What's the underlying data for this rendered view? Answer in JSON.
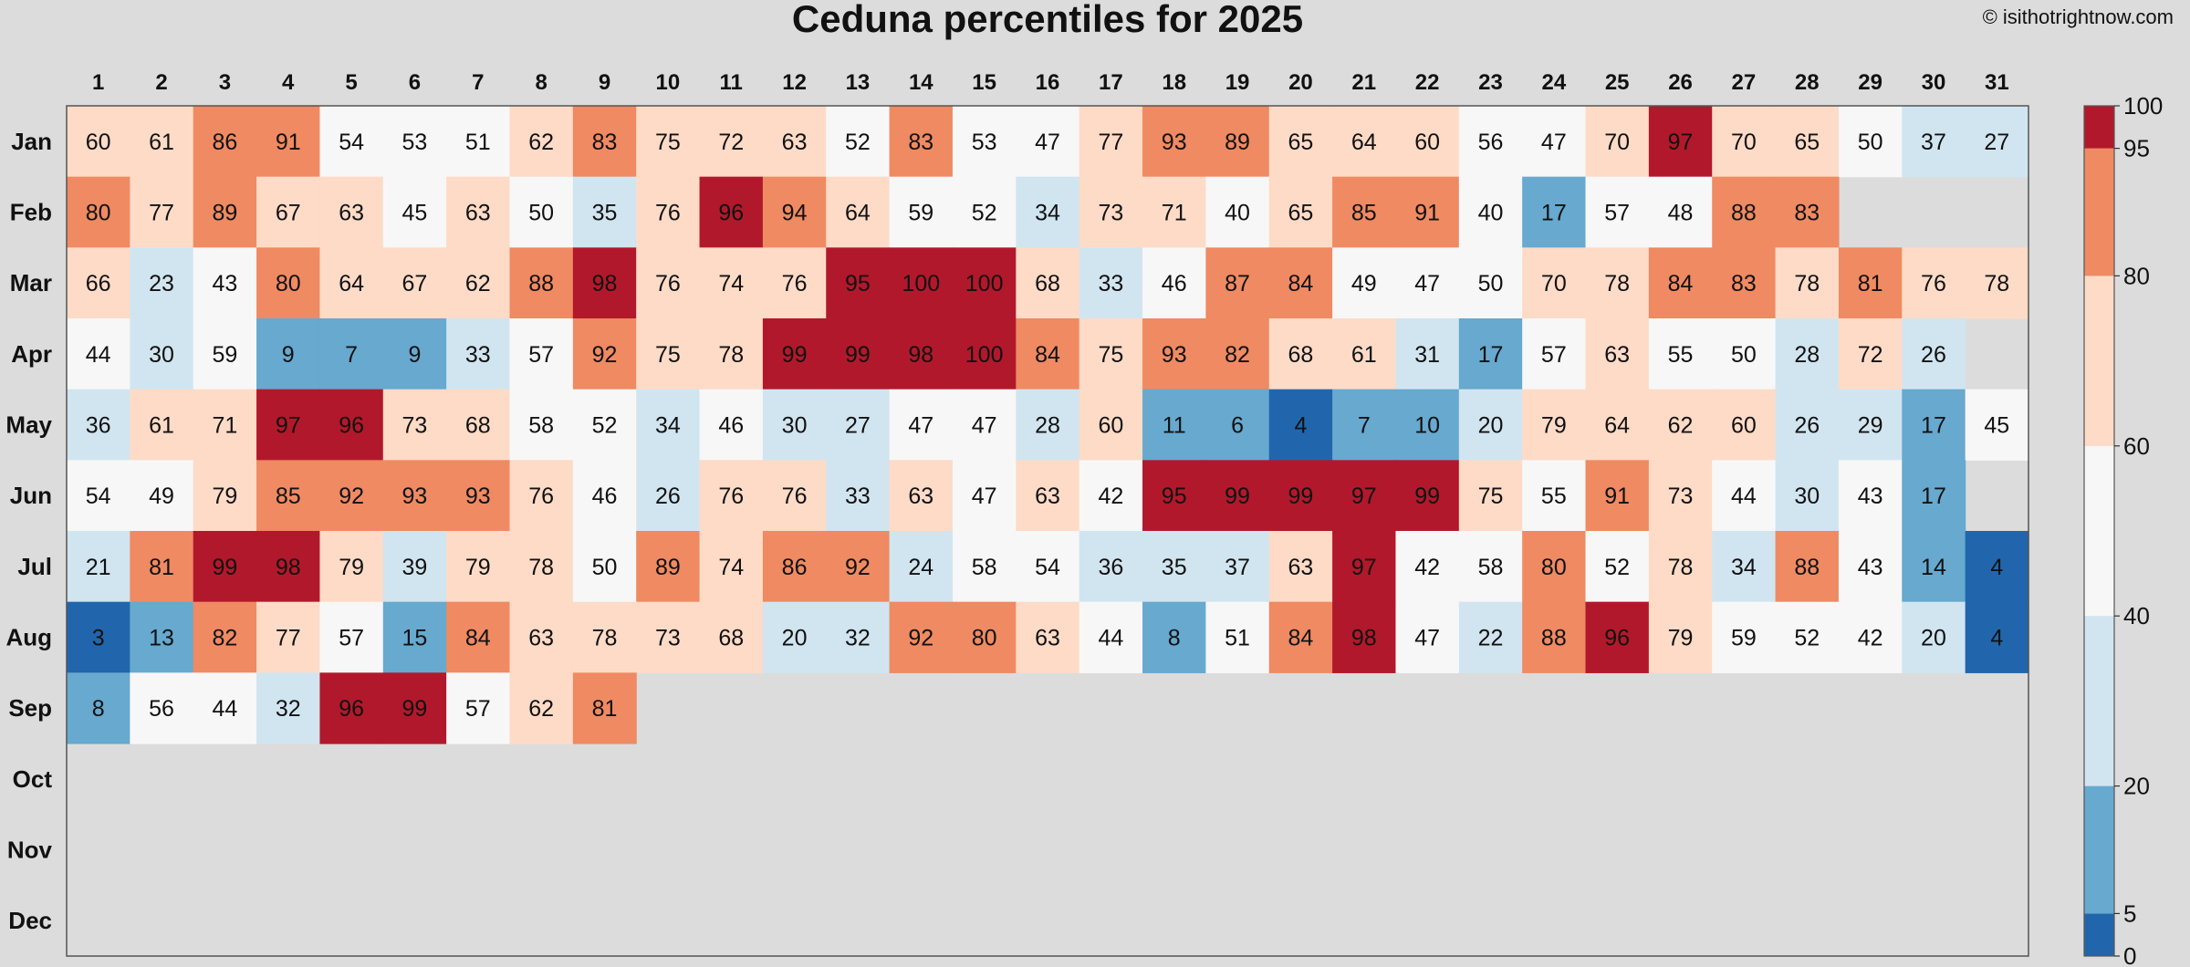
{
  "chart_data": {
    "type": "heatmap",
    "title": "Ceduna percentiles for 2025",
    "credit": "© isithotrightnow.com",
    "x_labels": [
      "1",
      "2",
      "3",
      "4",
      "5",
      "6",
      "7",
      "8",
      "9",
      "10",
      "11",
      "12",
      "13",
      "14",
      "15",
      "16",
      "17",
      "18",
      "19",
      "20",
      "21",
      "22",
      "23",
      "24",
      "25",
      "26",
      "27",
      "28",
      "29",
      "30",
      "31"
    ],
    "y_labels": [
      "Jan",
      "Feb",
      "Mar",
      "Apr",
      "May",
      "Jun",
      "Jul",
      "Aug",
      "Sep",
      "Oct",
      "Nov",
      "Dec"
    ],
    "values": [
      [
        60,
        61,
        86,
        91,
        54,
        53,
        51,
        62,
        83,
        75,
        72,
        63,
        52,
        83,
        53,
        47,
        77,
        93,
        89,
        65,
        64,
        60,
        56,
        47,
        70,
        97,
        70,
        65,
        50,
        37,
        27
      ],
      [
        80,
        77,
        89,
        67,
        63,
        45,
        63,
        50,
        35,
        76,
        96,
        94,
        64,
        59,
        52,
        34,
        73,
        71,
        40,
        65,
        85,
        91,
        40,
        17,
        57,
        48,
        88,
        83,
        null,
        null,
        null
      ],
      [
        66,
        23,
        43,
        80,
        64,
        67,
        62,
        88,
        98,
        76,
        74,
        76,
        95,
        100,
        100,
        68,
        33,
        46,
        87,
        84,
        49,
        47,
        50,
        70,
        78,
        84,
        83,
        78,
        81,
        76,
        78
      ],
      [
        44,
        30,
        59,
        9,
        7,
        9,
        33,
        57,
        92,
        75,
        78,
        99,
        99,
        98,
        100,
        84,
        75,
        93,
        82,
        68,
        61,
        31,
        17,
        57,
        63,
        55,
        50,
        28,
        72,
        26,
        null
      ],
      [
        36,
        61,
        71,
        97,
        96,
        73,
        68,
        58,
        52,
        34,
        46,
        30,
        27,
        47,
        47,
        28,
        60,
        11,
        6,
        4,
        7,
        10,
        20,
        79,
        64,
        62,
        60,
        26,
        29,
        17,
        45
      ],
      [
        54,
        49,
        79,
        85,
        92,
        93,
        93,
        76,
        46,
        26,
        76,
        76,
        33,
        63,
        47,
        63,
        42,
        95,
        99,
        99,
        97,
        99,
        75,
        55,
        91,
        73,
        44,
        30,
        43,
        17,
        null
      ],
      [
        21,
        81,
        99,
        98,
        79,
        39,
        79,
        78,
        50,
        89,
        74,
        86,
        92,
        24,
        58,
        54,
        36,
        35,
        37,
        63,
        97,
        42,
        58,
        80,
        52,
        78,
        34,
        88,
        43,
        14,
        4
      ],
      [
        3,
        13,
        82,
        77,
        57,
        15,
        84,
        63,
        78,
        73,
        68,
        20,
        32,
        92,
        80,
        63,
        44,
        8,
        51,
        84,
        98,
        47,
        22,
        88,
        96,
        79,
        59,
        52,
        42,
        20,
        4
      ],
      [
        8,
        56,
        44,
        32,
        96,
        99,
        57,
        62,
        81,
        null,
        null,
        null,
        null,
        null,
        null,
        null,
        null,
        null,
        null,
        null,
        null,
        null,
        null,
        null,
        null,
        null,
        null,
        null,
        null,
        null,
        null
      ],
      [
        null,
        null,
        null,
        null,
        null,
        null,
        null,
        null,
        null,
        null,
        null,
        null,
        null,
        null,
        null,
        null,
        null,
        null,
        null,
        null,
        null,
        null,
        null,
        null,
        null,
        null,
        null,
        null,
        null,
        null,
        null
      ],
      [
        null,
        null,
        null,
        null,
        null,
        null,
        null,
        null,
        null,
        null,
        null,
        null,
        null,
        null,
        null,
        null,
        null,
        null,
        null,
        null,
        null,
        null,
        null,
        null,
        null,
        null,
        null,
        null,
        null,
        null,
        null
      ],
      [
        null,
        null,
        null,
        null,
        null,
        null,
        null,
        null,
        null,
        null,
        null,
        null,
        null,
        null,
        null,
        null,
        null,
        null,
        null,
        null,
        null,
        null,
        null,
        null,
        null,
        null,
        null,
        null,
        null,
        null,
        null
      ]
    ],
    "color_scale": {
      "boundaries": [
        0,
        5,
        20,
        40,
        60,
        80,
        95,
        100
      ],
      "colors": [
        "#2166ac",
        "#67a9cf",
        "#d1e5f0",
        "#f7f7f7",
        "#fddbc7",
        "#ef8a62",
        "#b2182b"
      ],
      "tick_labels": [
        "0",
        "5",
        "20",
        "40",
        "60",
        "80",
        "95",
        "100"
      ]
    },
    "background": "#dcdcdc"
  }
}
